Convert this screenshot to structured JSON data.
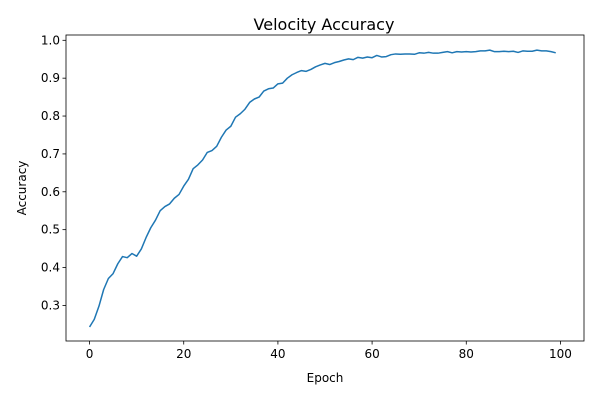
{
  "chart_data": {
    "type": "line",
    "title": "Velocity Accuracy",
    "xlabel": "Epoch",
    "ylabel": "Accuracy",
    "xlim": [
      -5,
      105
    ],
    "ylim": [
      0.206,
      1.014
    ],
    "xticks": [
      0,
      20,
      40,
      60,
      80,
      100
    ],
    "yticks": [
      0.3,
      0.4,
      0.5,
      0.6,
      0.7,
      0.8,
      0.9,
      1.0
    ],
    "ytick_labels": [
      "0.3",
      "0.4",
      "0.5",
      "0.6",
      "0.7",
      "0.8",
      "0.9",
      "1.0"
    ],
    "grid": false,
    "line_color": "#1f77b4",
    "series": [
      {
        "name": "",
        "x": [
          0,
          1,
          2,
          3,
          4,
          5,
          6,
          7,
          8,
          9,
          10,
          11,
          12,
          13,
          14,
          15,
          16,
          17,
          18,
          19,
          20,
          21,
          22,
          23,
          24,
          25,
          26,
          27,
          28,
          29,
          30,
          31,
          32,
          33,
          34,
          35,
          36,
          37,
          38,
          39,
          40,
          41,
          42,
          43,
          44,
          45,
          46,
          47,
          48,
          49,
          50,
          51,
          52,
          53,
          54,
          55,
          56,
          57,
          58,
          59,
          60,
          61,
          62,
          63,
          64,
          65,
          66,
          67,
          68,
          69,
          70,
          71,
          72,
          73,
          74,
          75,
          76,
          77,
          78,
          79,
          80,
          81,
          82,
          83,
          84,
          85,
          86,
          87,
          88,
          89,
          90,
          91,
          92,
          93,
          94,
          95,
          96,
          97,
          98,
          99
        ],
        "values": [
          0.243,
          0.263,
          0.298,
          0.342,
          0.371,
          0.384,
          0.41,
          0.429,
          0.426,
          0.437,
          0.43,
          0.449,
          0.479,
          0.505,
          0.525,
          0.55,
          0.561,
          0.568,
          0.583,
          0.593,
          0.615,
          0.633,
          0.661,
          0.671,
          0.684,
          0.704,
          0.709,
          0.72,
          0.744,
          0.763,
          0.773,
          0.797,
          0.806,
          0.818,
          0.836,
          0.845,
          0.85,
          0.866,
          0.872,
          0.874,
          0.885,
          0.887,
          0.9,
          0.909,
          0.915,
          0.92,
          0.918,
          0.923,
          0.93,
          0.935,
          0.939,
          0.936,
          0.941,
          0.944,
          0.948,
          0.951,
          0.949,
          0.955,
          0.953,
          0.956,
          0.954,
          0.96,
          0.956,
          0.957,
          0.962,
          0.964,
          0.963,
          0.964,
          0.964,
          0.963,
          0.967,
          0.966,
          0.968,
          0.966,
          0.966,
          0.968,
          0.97,
          0.967,
          0.97,
          0.969,
          0.97,
          0.969,
          0.97,
          0.972,
          0.972,
          0.974,
          0.97,
          0.97,
          0.971,
          0.97,
          0.971,
          0.968,
          0.972,
          0.971,
          0.971,
          0.974,
          0.972,
          0.972,
          0.97,
          0.967
        ]
      }
    ]
  }
}
